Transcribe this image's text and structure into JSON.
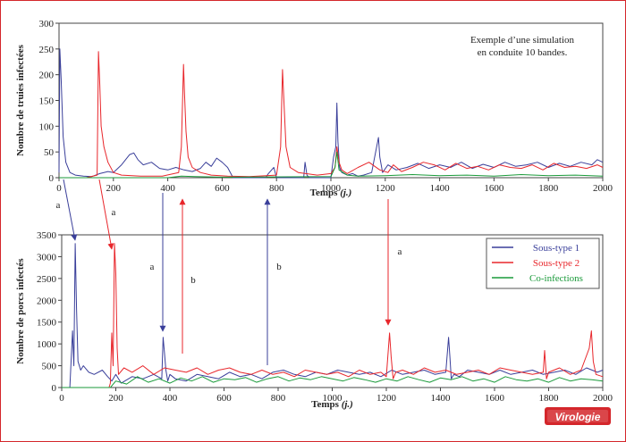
{
  "figure": {
    "logo_text": "Virologie",
    "colors": {
      "frame": "#d4262b",
      "series1": "#3a3f9a",
      "series2": "#e8262b",
      "series3": "#1a9a3a"
    }
  },
  "chart_data": [
    {
      "type": "line",
      "ylabel": "Nombre de truies infectées",
      "xlabel_main": "Temps",
      "xlabel_unit": "(j.)",
      "xlim": [
        0,
        2000
      ],
      "ylim": [
        0,
        300
      ],
      "xticks": [
        0,
        200,
        400,
        600,
        800,
        1000,
        1200,
        1400,
        1600,
        1800,
        2000
      ],
      "yticks": [
        0,
        50,
        100,
        150,
        200,
        250,
        300
      ],
      "annotation_lines": [
        "Exemple d’une simulation",
        "en conduite 10 bandes."
      ],
      "series": [
        {
          "color": "#3a3f9a",
          "x": [
            0,
            3,
            8,
            15,
            25,
            40,
            60,
            90,
            120,
            150,
            180,
            200,
            230,
            260,
            275,
            290,
            310,
            340,
            370,
            400,
            430,
            460,
            490,
            520,
            540,
            560,
            580,
            600,
            620,
            640,
            700,
            760,
            770,
            790,
            800,
            900,
            905,
            912,
            920,
            1000,
            1010,
            1018,
            1022,
            1026,
            1032,
            1040,
            1060,
            1080,
            1100,
            1120,
            1150,
            1175,
            1180,
            1190,
            1210,
            1240,
            1280,
            1320,
            1360,
            1400,
            1440,
            1480,
            1520,
            1560,
            1600,
            1640,
            1680,
            1720,
            1760,
            1800,
            1840,
            1880,
            1920,
            1960,
            1980,
            2000
          ],
          "y": [
            10,
            250,
            190,
            80,
            30,
            10,
            5,
            3,
            2,
            8,
            12,
            10,
            25,
            45,
            48,
            35,
            25,
            30,
            18,
            15,
            20,
            15,
            12,
            18,
            30,
            22,
            38,
            30,
            20,
            0,
            0,
            0,
            8,
            20,
            0,
            0,
            30,
            5,
            0,
            0,
            40,
            60,
            145,
            70,
            20,
            10,
            5,
            8,
            3,
            5,
            10,
            78,
            40,
            10,
            25,
            15,
            20,
            28,
            18,
            25,
            20,
            30,
            18,
            26,
            20,
            30,
            22,
            25,
            30,
            20,
            28,
            22,
            30,
            25,
            35,
            30
          ]
        },
        {
          "color": "#e8262b",
          "x": [
            0,
            100,
            140,
            145,
            150,
            155,
            165,
            180,
            200,
            230,
            300,
            380,
            440,
            450,
            458,
            462,
            467,
            475,
            490,
            520,
            560,
            620,
            700,
            800,
            815,
            822,
            828,
            835,
            850,
            880,
            950,
            1000,
            1015,
            1022,
            1030,
            1040,
            1060,
            1100,
            1140,
            1180,
            1210,
            1230,
            1260,
            1300,
            1340,
            1380,
            1420,
            1460,
            1500,
            1540,
            1580,
            1620,
            1660,
            1700,
            1740,
            1780,
            1820,
            1860,
            1900,
            1940,
            1980,
            2000
          ],
          "y": [
            0,
            0,
            5,
            245,
            180,
            100,
            60,
            30,
            10,
            5,
            3,
            3,
            10,
            60,
            220,
            160,
            90,
            40,
            20,
            10,
            5,
            3,
            2,
            5,
            60,
            210,
            140,
            60,
            20,
            10,
            5,
            8,
            20,
            60,
            30,
            15,
            8,
            20,
            30,
            15,
            10,
            25,
            12,
            20,
            30,
            25,
            15,
            28,
            18,
            22,
            15,
            25,
            20,
            18,
            25,
            15,
            28,
            20,
            22,
            18,
            25,
            20
          ]
        },
        {
          "color": "#1a9a3a",
          "x": [
            0,
            400,
            450,
            500,
            600,
            1000,
            1015,
            1022,
            1030,
            1060,
            1100,
            1200,
            1300,
            1400,
            1500,
            1600,
            1700,
            1800,
            1900,
            2000
          ],
          "y": [
            0,
            0,
            3,
            2,
            1,
            2,
            20,
            50,
            15,
            5,
            3,
            4,
            6,
            4,
            5,
            3,
            6,
            4,
            5,
            3
          ]
        }
      ]
    },
    {
      "type": "line",
      "ylabel": "Nombre de porcs infectés",
      "xlabel_main": "Temps",
      "xlabel_unit": "(j.)",
      "xlim": [
        0,
        2000
      ],
      "ylim": [
        0,
        3500
      ],
      "xticks": [
        0,
        200,
        400,
        600,
        800,
        1000,
        1200,
        1400,
        1600,
        1800,
        2000
      ],
      "yticks": [
        0,
        500,
        1000,
        1500,
        2000,
        2500,
        3000,
        3500
      ],
      "legend": {
        "position": "top-right"
      },
      "series": [
        {
          "name": "Sous-type 1",
          "color": "#3a3f9a",
          "x": [
            0,
            30,
            40,
            45,
            50,
            55,
            60,
            70,
            80,
            100,
            120,
            150,
            170,
            185,
            200,
            220,
            260,
            300,
            340,
            370,
            375,
            380,
            385,
            392,
            400,
            420,
            460,
            500,
            540,
            580,
            620,
            660,
            700,
            740,
            780,
            820,
            860,
            900,
            940,
            980,
            1020,
            1060,
            1100,
            1140,
            1180,
            1220,
            1260,
            1300,
            1340,
            1380,
            1420,
            1430,
            1435,
            1440,
            1450,
            1470,
            1500,
            1540,
            1580,
            1620,
            1660,
            1700,
            1740,
            1780,
            1820,
            1860,
            1900,
            1940,
            1980,
            2000
          ],
          "y": [
            0,
            0,
            1300,
            500,
            3300,
            1800,
            600,
            400,
            500,
            350,
            300,
            400,
            250,
            150,
            300,
            100,
            250,
            200,
            300,
            200,
            1150,
            800,
            400,
            150,
            300,
            200,
            150,
            300,
            250,
            200,
            350,
            250,
            300,
            200,
            350,
            400,
            300,
            250,
            350,
            300,
            400,
            350,
            300,
            350,
            250,
            400,
            300,
            350,
            400,
            300,
            350,
            1150,
            700,
            200,
            300,
            250,
            400,
            350,
            300,
            400,
            300,
            350,
            400,
            300,
            350,
            400,
            300,
            450,
            350,
            400
          ]
        },
        {
          "name": "Sous-type 2",
          "color": "#e8262b",
          "x": [
            0,
            150,
            175,
            180,
            185,
            190,
            195,
            200,
            205,
            210,
            230,
            260,
            300,
            340,
            380,
            420,
            460,
            500,
            540,
            580,
            620,
            660,
            700,
            740,
            780,
            820,
            860,
            900,
            940,
            980,
            1020,
            1060,
            1100,
            1140,
            1180,
            1200,
            1212,
            1218,
            1225,
            1235,
            1260,
            1300,
            1340,
            1380,
            1420,
            1460,
            1500,
            1540,
            1580,
            1620,
            1660,
            1700,
            1740,
            1780,
            1785,
            1792,
            1800,
            1840,
            1880,
            1920,
            1950,
            1958,
            1965,
            1975,
            2000
          ],
          "y": [
            0,
            0,
            0,
            100,
            1250,
            500,
            3300,
            2600,
            900,
            300,
            450,
            350,
            500,
            300,
            450,
            400,
            350,
            450,
            300,
            400,
            450,
            350,
            300,
            400,
            300,
            350,
            250,
            400,
            350,
            300,
            350,
            250,
            400,
            300,
            350,
            250,
            1250,
            700,
            200,
            350,
            400,
            300,
            450,
            350,
            400,
            300,
            350,
            400,
            300,
            450,
            400,
            350,
            300,
            350,
            850,
            200,
            350,
            450,
            300,
            400,
            900,
            1300,
            600,
            300,
            250
          ]
        },
        {
          "name": "Co-infections",
          "color": "#1a9a3a",
          "x": [
            0,
            180,
            200,
            240,
            280,
            320,
            360,
            400,
            440,
            480,
            520,
            560,
            600,
            640,
            680,
            720,
            760,
            800,
            840,
            880,
            920,
            960,
            1000,
            1040,
            1080,
            1120,
            1160,
            1200,
            1240,
            1280,
            1320,
            1360,
            1400,
            1440,
            1480,
            1520,
            1560,
            1600,
            1640,
            1680,
            1720,
            1760,
            1800,
            1840,
            1880,
            1920,
            1960,
            2000
          ],
          "y": [
            0,
            0,
            150,
            80,
            250,
            120,
            200,
            100,
            220,
            150,
            250,
            120,
            200,
            180,
            230,
            120,
            200,
            250,
            150,
            220,
            180,
            250,
            200,
            150,
            230,
            180,
            120,
            200,
            150,
            250,
            180,
            120,
            220,
            180,
            250,
            150,
            200,
            120,
            250,
            180,
            150,
            200,
            120,
            230,
            150,
            200,
            180,
            150
          ]
        }
      ]
    }
  ],
  "arrows": [
    {
      "label": "a"
    },
    {
      "label": "a"
    },
    {
      "label": "a"
    },
    {
      "label": "b"
    },
    {
      "label": "b"
    },
    {
      "label": "a"
    }
  ]
}
